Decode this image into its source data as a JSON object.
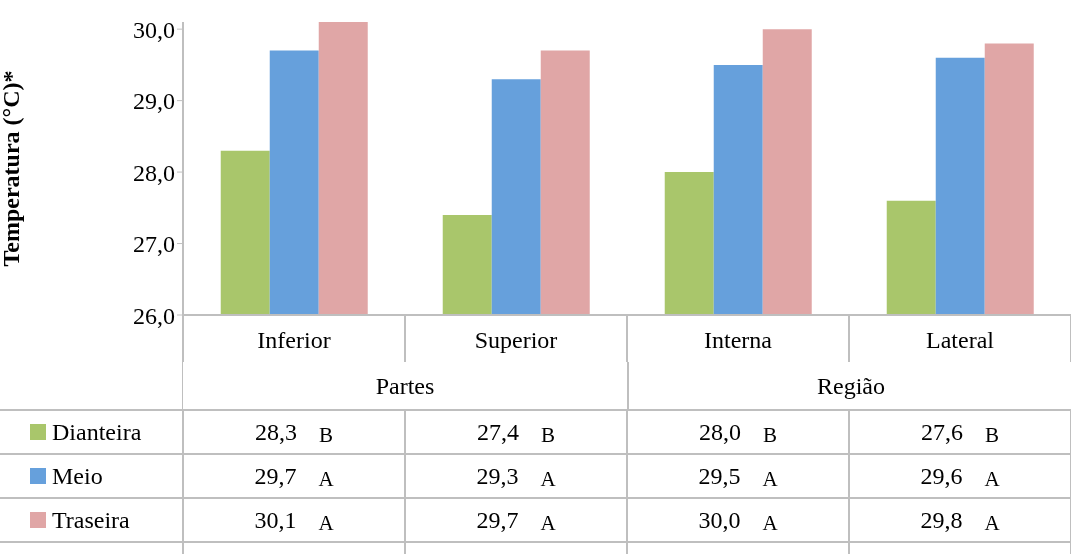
{
  "chart_data": {
    "type": "bar",
    "ylabel": "Temperatura  (°C)*",
    "categories": [
      "Inferior",
      "Superior",
      "Interna",
      "Lateral"
    ],
    "series": [
      {
        "name": "Dianteira",
        "color": "#a9c66b",
        "values": [
          28.3,
          27.4,
          28.0,
          27.6
        ],
        "value_labels": [
          "28,3",
          "27,4",
          "28,0",
          "27,6"
        ]
      },
      {
        "name": "Meio",
        "color": "#66a0dc",
        "values": [
          29.7,
          29.3,
          29.5,
          29.6
        ],
        "value_labels": [
          "29,7",
          "29,3",
          "29,5",
          "29,6"
        ]
      },
      {
        "name": "Traseira",
        "color": "#e0a6a6",
        "values": [
          30.1,
          29.7,
          30.0,
          29.8
        ],
        "value_labels": [
          "30,1",
          "29,7",
          "30,0",
          "29,8"
        ]
      }
    ],
    "ylim": [
      26,
      30.1
    ],
    "yticks": [
      {
        "value": 26,
        "label": "26,0"
      },
      {
        "value": 27,
        "label": "27,0"
      },
      {
        "value": 28,
        "label": "28,0"
      },
      {
        "value": 29,
        "label": "29,0"
      },
      {
        "value": 30,
        "label": "30,0"
      }
    ],
    "legend": "bottom left",
    "grid": false,
    "annotations": [
      "B",
      "B",
      "B",
      "B",
      "A",
      "A",
      "A",
      "A",
      "A",
      "A",
      "A",
      "A",
      "Partes",
      "Região"
    ]
  }
}
